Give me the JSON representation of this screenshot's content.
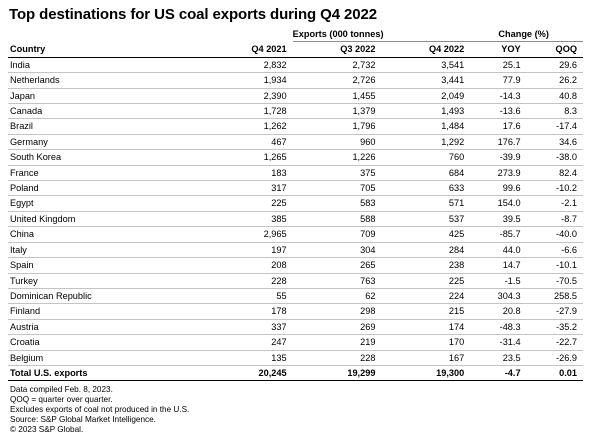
{
  "chart_data": {
    "type": "table",
    "title": "Top destinations for US coal exports during Q4 2022",
    "group_headers": {
      "exports": "Exports (000 tonnes)",
      "change": "Change (%)"
    },
    "columns": [
      "Country",
      "Q4 2021",
      "Q3 2022",
      "Q4 2022",
      "YOY",
      "QOQ"
    ],
    "rows": [
      [
        "India",
        "2,832",
        "2,732",
        "3,541",
        "25.1",
        "29.6"
      ],
      [
        "Netherlands",
        "1,934",
        "2,726",
        "3,441",
        "77.9",
        "26.2"
      ],
      [
        "Japan",
        "2,390",
        "1,455",
        "2,049",
        "-14.3",
        "40.8"
      ],
      [
        "Canada",
        "1,728",
        "1,379",
        "1,493",
        "-13.6",
        "8.3"
      ],
      [
        "Brazil",
        "1,262",
        "1,796",
        "1,484",
        "17.6",
        "-17.4"
      ],
      [
        "Germany",
        "467",
        "960",
        "1,292",
        "176.7",
        "34.6"
      ],
      [
        "South Korea",
        "1,265",
        "1,226",
        "760",
        "-39.9",
        "-38.0"
      ],
      [
        "France",
        "183",
        "375",
        "684",
        "273.9",
        "82.4"
      ],
      [
        "Poland",
        "317",
        "705",
        "633",
        "99.6",
        "-10.2"
      ],
      [
        "Egypt",
        "225",
        "583",
        "571",
        "154.0",
        "-2.1"
      ],
      [
        "United Kingdom",
        "385",
        "588",
        "537",
        "39.5",
        "-8.7"
      ],
      [
        "China",
        "2,965",
        "709",
        "425",
        "-85.7",
        "-40.0"
      ],
      [
        "Italy",
        "197",
        "304",
        "284",
        "44.0",
        "-6.6"
      ],
      [
        "Spain",
        "208",
        "265",
        "238",
        "14.7",
        "-10.1"
      ],
      [
        "Turkey",
        "228",
        "763",
        "225",
        "-1.5",
        "-70.5"
      ],
      [
        "Dominican Republic",
        "55",
        "62",
        "224",
        "304.3",
        "258.5"
      ],
      [
        "Finland",
        "178",
        "298",
        "215",
        "20.8",
        "-27.9"
      ],
      [
        "Austria",
        "337",
        "269",
        "174",
        "-48.3",
        "-35.2"
      ],
      [
        "Croatia",
        "247",
        "219",
        "170",
        "-31.4",
        "-22.7"
      ],
      [
        "Belgium",
        "135",
        "228",
        "167",
        "23.5",
        "-26.9"
      ]
    ],
    "total_row": [
      "Total U.S. exports",
      "20,245",
      "19,299",
      "19,300",
      "-4.7",
      "0.01"
    ]
  },
  "notes": [
    "Data compiled Feb. 8, 2023.",
    "QOQ = quarter over quarter.",
    "Excludes exports of coal not produced in the U.S.",
    "Source: S&P Global Market Intelligence.",
    "© 2023 S&P Global."
  ]
}
